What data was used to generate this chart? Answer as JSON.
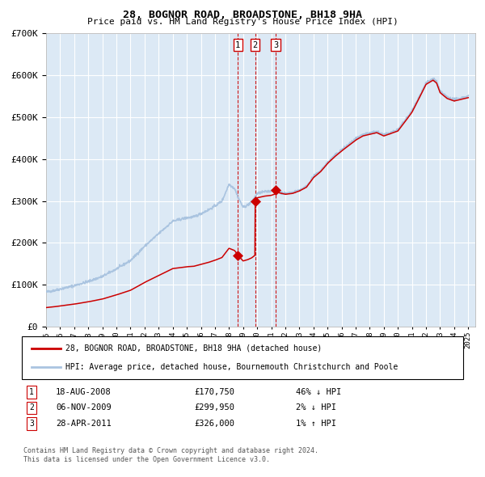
{
  "title": "28, BOGNOR ROAD, BROADSTONE, BH18 9HA",
  "subtitle": "Price paid vs. HM Land Registry's House Price Index (HPI)",
  "xlabel": "",
  "ylabel": "",
  "background_color": "#dce9f5",
  "plot_bg_color": "#dce9f5",
  "grid_color": "#ffffff",
  "hpi_color": "#aac4e0",
  "price_color": "#cc0000",
  "transactions": [
    {
      "num": 1,
      "date_x": 2008.63,
      "price": 170750,
      "label": "18-AUG-2008",
      "pct": "46% ↓ HPI"
    },
    {
      "num": 2,
      "date_x": 2009.85,
      "price": 299950,
      "label": "06-NOV-2009",
      "pct": "2% ↓ HPI"
    },
    {
      "num": 3,
      "date_x": 2011.32,
      "price": 326000,
      "label": "28-APR-2011",
      "pct": "1% ↑ HPI"
    }
  ],
  "legend_line1": "28, BOGNOR ROAD, BROADSTONE, BH18 9HA (detached house)",
  "legend_line2": "HPI: Average price, detached house, Bournemouth Christchurch and Poole",
  "footer1": "Contains HM Land Registry data © Crown copyright and database right 2024.",
  "footer2": "This data is licensed under the Open Government Licence v3.0.",
  "ylim": [
    0,
    700000
  ],
  "xlim_start": 1995.0,
  "xlim_end": 2025.5
}
